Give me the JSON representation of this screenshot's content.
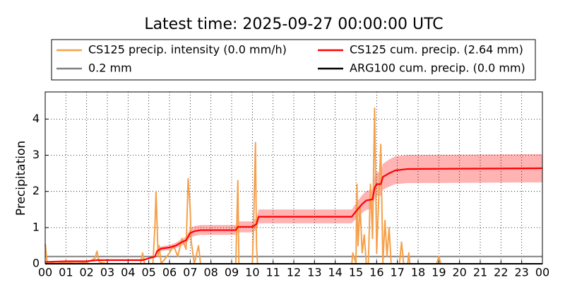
{
  "chart_data": {
    "type": "line",
    "title": "Latest time: 2025-09-27 00:00:00 UTC",
    "y_label": "Precipitation",
    "xlim": [
      0,
      24
    ],
    "xticks": [
      {
        "value": 0,
        "label": "00"
      },
      {
        "value": 1,
        "label": "01"
      },
      {
        "value": 2,
        "label": "02"
      },
      {
        "value": 3,
        "label": "03"
      },
      {
        "value": 4,
        "label": "04"
      },
      {
        "value": 5,
        "label": "05"
      },
      {
        "value": 6,
        "label": "06"
      },
      {
        "value": 7,
        "label": "07"
      },
      {
        "value": 8,
        "label": "08"
      },
      {
        "value": 9,
        "label": "09"
      },
      10,
      11,
      12,
      13,
      14,
      15,
      16,
      17,
      18,
      19,
      20,
      21,
      22,
      23,
      {
        "value": 24,
        "label": "00"
      }
    ],
    "ylim": [
      0,
      4.75
    ],
    "yticks": [
      0,
      1,
      2,
      3,
      4
    ],
    "grid": true,
    "legend": "top",
    "series": [
      {
        "name": "CS125 precip. intensity (0.0 mm/h)",
        "color": "#f5a04a",
        "x": [
          0,
          0.1,
          0.5,
          1,
          1.5,
          2,
          2.4,
          2.5,
          2.6,
          3,
          4.6,
          4.7,
          4.8,
          5.2,
          5.3,
          5.35,
          5.45,
          5.5,
          5.6,
          6.0,
          6.2,
          6.4,
          6.6,
          6.8,
          6.9,
          7.0,
          7.05,
          7.2,
          7.4,
          7.5,
          9.2,
          9.3,
          9.35,
          10.0,
          10.05,
          10.15,
          10.2,
          10.25,
          14.8,
          14.85,
          15.0,
          15.05,
          15.1,
          15.2,
          15.3,
          15.4,
          15.5,
          15.6,
          15.7,
          15.8,
          15.9,
          16.0,
          16.1,
          16.2,
          16.3,
          16.4,
          16.5,
          16.6,
          16.7,
          17.1,
          17.2,
          17.3,
          17.5,
          17.55,
          17.6,
          18.9,
          19,
          19.1,
          24
        ],
        "values": [
          0.55,
          0,
          0.05,
          0.03,
          0.05,
          0.03,
          0.15,
          0.35,
          0.05,
          0,
          0,
          0.3,
          0,
          0,
          1.1,
          2.0,
          0.2,
          0.5,
          0,
          0.3,
          0.5,
          0.2,
          0.7,
          0.4,
          2.35,
          1.5,
          0.6,
          0,
          0.5,
          0,
          0,
          2.3,
          0,
          0,
          0.9,
          3.35,
          0.5,
          0,
          0,
          0.3,
          0,
          2.2,
          0.5,
          1.6,
          0.3,
          0.8,
          0,
          0,
          2.2,
          0.7,
          4.3,
          0.3,
          1.8,
          3.3,
          0,
          1.2,
          0.2,
          1.0,
          0,
          0,
          0.6,
          0,
          0,
          0.3,
          0,
          0,
          0.2,
          0,
          0
        ]
      },
      {
        "name": "CS125 cum. precip. (2.64 mm)",
        "color": "#ff0000",
        "band_color": "#ff9999",
        "x": [
          0,
          1,
          2,
          2.5,
          4.7,
          5,
          5.3,
          5.4,
          5.6,
          6.0,
          6.3,
          6.6,
          6.8,
          7.0,
          7.2,
          7.5,
          9.2,
          9.3,
          10.0,
          10.2,
          10.3,
          14.8,
          15.0,
          15.3,
          15.5,
          15.8,
          15.9,
          16.0,
          16.2,
          16.3,
          16.6,
          16.9,
          17.5,
          24
        ],
        "values": [
          0.05,
          0.07,
          0.07,
          0.1,
          0.1,
          0.15,
          0.2,
          0.35,
          0.42,
          0.45,
          0.5,
          0.6,
          0.65,
          0.85,
          0.9,
          0.93,
          0.93,
          1.02,
          1.02,
          1.1,
          1.3,
          1.3,
          1.45,
          1.65,
          1.75,
          1.78,
          2.1,
          2.2,
          2.2,
          2.4,
          2.5,
          2.58,
          2.62,
          2.64
        ],
        "lower": [
          0.04,
          0.06,
          0.06,
          0.08,
          0.08,
          0.13,
          0.17,
          0.3,
          0.36,
          0.38,
          0.43,
          0.51,
          0.55,
          0.72,
          0.77,
          0.8,
          0.8,
          0.87,
          0.87,
          0.94,
          1.12,
          1.12,
          1.24,
          1.41,
          1.49,
          1.52,
          1.79,
          1.88,
          1.88,
          2.05,
          2.13,
          2.2,
          2.23,
          2.25
        ],
        "upper": [
          0.06,
          0.08,
          0.08,
          0.12,
          0.12,
          0.17,
          0.23,
          0.4,
          0.48,
          0.52,
          0.58,
          0.69,
          0.75,
          0.98,
          1.04,
          1.07,
          1.07,
          1.17,
          1.17,
          1.27,
          1.5,
          1.5,
          1.67,
          1.9,
          2.01,
          2.05,
          2.42,
          2.53,
          2.53,
          2.76,
          2.88,
          2.97,
          3.01,
          3.03
        ]
      },
      {
        "name": "0.2 mm",
        "color": "#808080",
        "x": [
          0,
          24
        ],
        "values": [
          0.2,
          0.2
        ]
      },
      {
        "name": "ARG100 cum. precip. (0.0 mm)",
        "color": "#000000",
        "x": [
          0,
          24
        ],
        "values": [
          0,
          0
        ]
      }
    ]
  }
}
